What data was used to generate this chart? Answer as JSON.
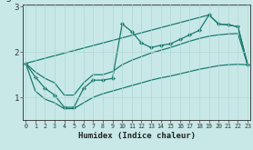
{
  "xlabel": "Humidex (Indice chaleur)",
  "bg_color": "#c8e8e8",
  "line_color": "#1a7a6e",
  "grid_color": "#b0d8d0",
  "x": [
    0,
    1,
    2,
    3,
    4,
    5,
    6,
    7,
    8,
    9,
    10,
    11,
    12,
    13,
    14,
    15,
    16,
    17,
    18,
    19,
    20,
    21,
    22,
    23
  ],
  "jagged": [
    1.75,
    1.45,
    1.2,
    1.05,
    0.78,
    0.78,
    1.2,
    1.38,
    1.38,
    1.42,
    2.62,
    2.45,
    2.2,
    2.1,
    2.15,
    2.18,
    2.28,
    2.38,
    2.48,
    2.82,
    2.62,
    2.6,
    2.56,
    1.72
  ],
  "upper_x": [
    0,
    19,
    20,
    21,
    22,
    23
  ],
  "upper_y": [
    1.75,
    2.82,
    2.62,
    2.6,
    2.56,
    1.72
  ],
  "lower_x": [
    0,
    1,
    2,
    3,
    4,
    5,
    6,
    7,
    8,
    9,
    10,
    11,
    12,
    13,
    14,
    15,
    16,
    17,
    18,
    19,
    20,
    21,
    22,
    23
  ],
  "lower_y": [
    1.75,
    1.14,
    0.96,
    0.88,
    0.75,
    0.75,
    0.88,
    1.0,
    1.08,
    1.14,
    1.2,
    1.26,
    1.32,
    1.38,
    1.43,
    1.47,
    1.52,
    1.57,
    1.62,
    1.66,
    1.7,
    1.72,
    1.73,
    1.72
  ],
  "mid_x": [
    0,
    1,
    2,
    3,
    4,
    5,
    6,
    7,
    8,
    9,
    10,
    11,
    12,
    13,
    14,
    15,
    16,
    17,
    18,
    19,
    20,
    21,
    22,
    23
  ],
  "mid_y": [
    1.75,
    1.56,
    1.42,
    1.32,
    1.05,
    1.05,
    1.32,
    1.5,
    1.5,
    1.57,
    1.72,
    1.82,
    1.9,
    1.98,
    2.04,
    2.1,
    2.17,
    2.24,
    2.3,
    2.35,
    2.38,
    2.4,
    2.41,
    1.72
  ],
  "ylim": [
    0.5,
    3.05
  ],
  "xlim": [
    -0.3,
    23.3
  ],
  "yticks": [
    1,
    2,
    3
  ],
  "xticks": [
    0,
    1,
    2,
    3,
    4,
    5,
    6,
    7,
    8,
    9,
    10,
    11,
    12,
    13,
    14,
    15,
    16,
    17,
    18,
    19,
    20,
    21,
    22,
    23
  ]
}
